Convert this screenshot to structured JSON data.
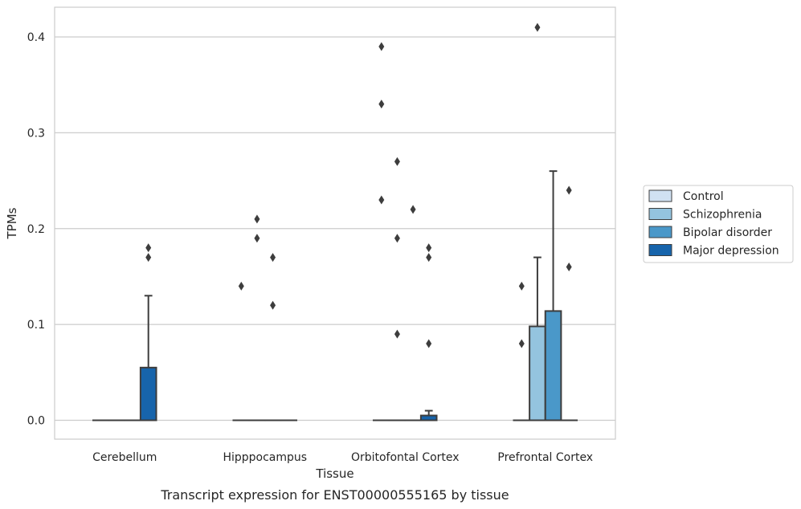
{
  "chart_data": {
    "type": "box",
    "caption": "Transcript expression for ENST00000555165 by tissue",
    "xlabel": "Tissue",
    "ylabel": "TPMs",
    "ylim": [
      -0.02,
      0.43
    ],
    "yticks": [
      "0.0",
      "0.1",
      "0.2",
      "0.3",
      "0.4"
    ],
    "categories": [
      "Cerebellum",
      "Hipppocampus",
      "Orbitofontal Cortex",
      "Prefrontal Cortex"
    ],
    "grid": true,
    "legend_position": "right",
    "series": [
      {
        "name": "Control",
        "color": "#d0e1f2",
        "boxes": [
          {
            "q1": 0,
            "median": 0,
            "q3": 0,
            "whisker_low": 0,
            "whisker_high": 0,
            "outliers": []
          },
          {
            "q1": 0,
            "median": 0,
            "q3": 0,
            "whisker_low": 0,
            "whisker_high": 0,
            "outliers": [
              0.14
            ]
          },
          {
            "q1": 0,
            "median": 0,
            "q3": 0,
            "whisker_low": 0,
            "whisker_high": 0,
            "outliers": [
              0.39,
              0.33,
              0.23
            ]
          },
          {
            "q1": 0,
            "median": 0,
            "q3": 0,
            "whisker_low": 0,
            "whisker_high": 0,
            "outliers": [
              0.14,
              0.08
            ]
          }
        ]
      },
      {
        "name": "Schizophrenia",
        "color": "#94c4df",
        "boxes": [
          {
            "q1": 0,
            "median": 0,
            "q3": 0,
            "whisker_low": 0,
            "whisker_high": 0,
            "outliers": []
          },
          {
            "q1": 0,
            "median": 0,
            "q3": 0,
            "whisker_low": 0,
            "whisker_high": 0,
            "outliers": [
              0.21,
              0.19
            ]
          },
          {
            "q1": 0,
            "median": 0,
            "q3": 0,
            "whisker_low": 0,
            "whisker_high": 0,
            "outliers": [
              0.27,
              0.19,
              0.09
            ]
          },
          {
            "q1": 0,
            "median": 0,
            "q3": 0.098,
            "whisker_low": 0,
            "whisker_high": 0.17,
            "outliers": [
              0.41
            ]
          }
        ]
      },
      {
        "name": "Bipolar disorder",
        "color": "#4a98c9",
        "boxes": [
          {
            "q1": 0,
            "median": 0,
            "q3": 0,
            "whisker_low": 0,
            "whisker_high": 0,
            "outliers": []
          },
          {
            "q1": 0,
            "median": 0,
            "q3": 0,
            "whisker_low": 0,
            "whisker_high": 0,
            "outliers": [
              0.17,
              0.12
            ]
          },
          {
            "q1": 0,
            "median": 0,
            "q3": 0,
            "whisker_low": 0,
            "whisker_high": 0,
            "outliers": [
              0.22
            ]
          },
          {
            "q1": 0,
            "median": 0,
            "q3": 0.114,
            "whisker_low": 0,
            "whisker_high": 0.26,
            "outliers": []
          }
        ]
      },
      {
        "name": "Major depression",
        "color": "#1764ab",
        "boxes": [
          {
            "q1": 0,
            "median": 0,
            "q3": 0.055,
            "whisker_low": 0,
            "whisker_high": 0.13,
            "outliers": [
              0.18,
              0.17
            ]
          },
          {
            "q1": 0,
            "median": 0,
            "q3": 0,
            "whisker_low": 0,
            "whisker_high": 0,
            "outliers": []
          },
          {
            "q1": 0,
            "median": 0,
            "q3": 0.005,
            "whisker_low": 0,
            "whisker_high": 0.01,
            "outliers": [
              0.18,
              0.17,
              0.08
            ]
          },
          {
            "q1": 0,
            "median": 0,
            "q3": 0,
            "whisker_low": 0,
            "whisker_high": 0,
            "outliers": [
              0.24,
              0.16
            ]
          }
        ]
      }
    ]
  }
}
